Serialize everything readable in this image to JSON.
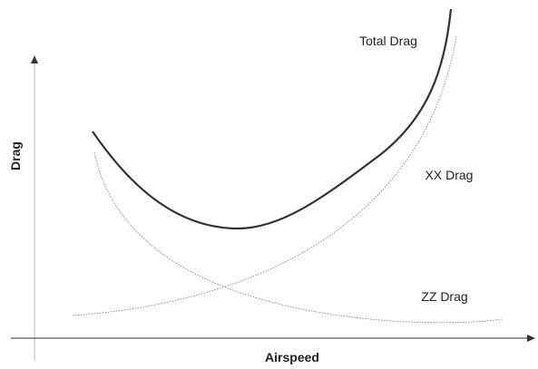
{
  "axes": {
    "x_label": "Airspeed",
    "y_label": "Drag"
  },
  "curves": [
    {
      "label": "Total Drag"
    },
    {
      "label": "XX Drag"
    },
    {
      "label": "ZZ Drag"
    }
  ]
}
